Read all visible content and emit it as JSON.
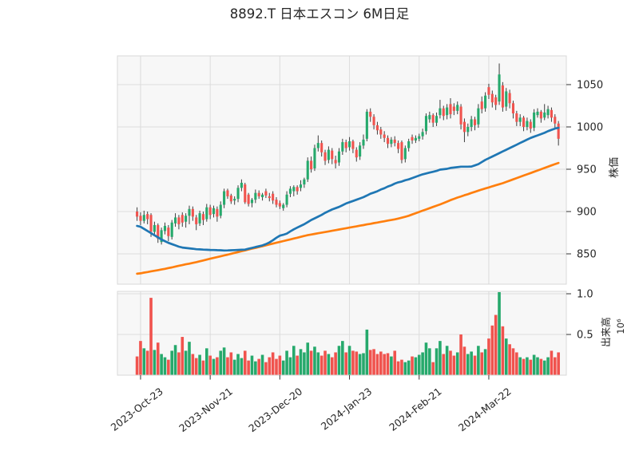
{
  "title": "8892.T 日本エスコン 6M日足",
  "price_axis": {
    "label": "株価",
    "tick_values": [
      1050,
      1000,
      950,
      900,
      850
    ]
  },
  "volume_axis": {
    "label": "出来高",
    "scale_label": "10⁶",
    "tick_values": [
      1.0,
      0.5
    ],
    "tick_labels": [
      "1.0",
      "0.5"
    ]
  },
  "x_axis": {
    "tick_labels": [
      "2023-Oct-23",
      "2023-Nov-21",
      "2023-Dec-20",
      "2024-Jan-23",
      "2024-Feb-21",
      "2024-Mar-22"
    ],
    "tick_indices": [
      1,
      21,
      41,
      61,
      81,
      101
    ]
  },
  "style": {
    "up_color": "#26a96c",
    "down_color": "#f0534e",
    "wick_color": "#3d3d3d",
    "ma_short_color": "#1f77b4",
    "ma_long_color": "#ff7f0e",
    "plot_bg": "#f7f7f7",
    "grid_color": "#dcdcdc",
    "border_color": "#d8d8d8",
    "text_color": "#262626",
    "tick_mark_color": "#333333"
  },
  "chart_data": {
    "type": "candlestick+volume",
    "symbol": "8892.T",
    "name": "日本エスコン",
    "timeframe": "6M日足",
    "price_range": [
      850,
      1050
    ],
    "volume_unit": 1000000,
    "legend": [
      "ma_short (blue)",
      "ma_long (orange)"
    ],
    "dates": [
      "2023-10-20",
      "2023-10-23",
      "2023-10-24",
      "2023-10-25",
      "2023-10-26",
      "2023-10-27",
      "2023-10-30",
      "2023-10-31",
      "2023-11-01",
      "2023-11-02",
      "2023-11-06",
      "2023-11-07",
      "2023-11-08",
      "2023-11-09",
      "2023-11-10",
      "2023-11-13",
      "2023-11-14",
      "2023-11-15",
      "2023-11-16",
      "2023-11-17",
      "2023-11-20",
      "2023-11-21",
      "2023-11-22",
      "2023-11-24",
      "2023-11-27",
      "2023-11-28",
      "2023-11-29",
      "2023-11-30",
      "2023-12-01",
      "2023-12-04",
      "2023-12-05",
      "2023-12-06",
      "2023-12-07",
      "2023-12-08",
      "2023-12-11",
      "2023-12-12",
      "2023-12-13",
      "2023-12-14",
      "2023-12-15",
      "2023-12-18",
      "2023-12-19",
      "2023-12-20",
      "2023-12-21",
      "2023-12-22",
      "2023-12-25",
      "2023-12-26",
      "2023-12-27",
      "2023-12-28",
      "2023-12-29",
      "2024-01-04",
      "2024-01-05",
      "2024-01-09",
      "2024-01-10",
      "2024-01-11",
      "2024-01-12",
      "2024-01-15",
      "2024-01-16",
      "2024-01-17",
      "2024-01-18",
      "2024-01-19",
      "2024-01-22",
      "2024-01-23",
      "2024-01-24",
      "2024-01-25",
      "2024-01-26",
      "2024-01-29",
      "2024-01-30",
      "2024-01-31",
      "2024-02-01",
      "2024-02-02",
      "2024-02-05",
      "2024-02-06",
      "2024-02-07",
      "2024-02-08",
      "2024-02-09",
      "2024-02-13",
      "2024-02-14",
      "2024-02-15",
      "2024-02-16",
      "2024-02-19",
      "2024-02-20",
      "2024-02-21",
      "2024-02-22",
      "2024-02-26",
      "2024-02-27",
      "2024-02-28",
      "2024-02-29",
      "2024-03-01",
      "2024-03-04",
      "2024-03-05",
      "2024-03-06",
      "2024-03-07",
      "2024-03-08",
      "2024-03-11",
      "2024-03-12",
      "2024-03-13",
      "2024-03-14",
      "2024-03-15",
      "2024-03-18",
      "2024-03-19",
      "2024-03-21",
      "2024-03-22",
      "2024-03-25",
      "2024-03-26",
      "2024-03-27",
      "2024-03-28",
      "2024-03-29",
      "2024-04-01",
      "2024-04-02",
      "2024-04-03",
      "2024-04-04",
      "2024-04-05",
      "2024-04-08",
      "2024-04-09",
      "2024-04-10",
      "2024-04-11",
      "2024-04-12",
      "2024-04-15",
      "2024-04-16",
      "2024-04-17",
      "2024-04-18",
      "2024-04-19"
    ],
    "open": [
      900,
      895,
      889,
      897,
      896,
      876,
      884,
      864,
      877,
      881,
      870,
      886,
      893,
      896,
      888,
      895,
      903,
      893,
      886,
      897,
      891,
      905,
      897,
      903,
      895,
      908,
      925,
      919,
      913,
      915,
      928,
      932,
      920,
      910,
      914,
      922,
      917,
      924,
      918,
      921,
      914,
      910,
      904,
      908,
      921,
      924,
      929,
      928,
      932,
      938,
      960,
      951,
      975,
      981,
      970,
      961,
      972,
      961,
      958,
      971,
      982,
      976,
      983,
      973,
      965,
      978,
      986,
      1018,
      1012,
      1002,
      997,
      991,
      987,
      980,
      985,
      981,
      982,
      962,
      975,
      988,
      984,
      986,
      989,
      995,
      1009,
      1014,
      1005,
      1014,
      1022,
      1014,
      1027,
      1024,
      1019,
      1024,
      1006,
      994,
      1000,
      1009,
      1003,
      1030,
      1022,
      1047,
      1039,
      1035,
      1030,
      1049,
      1024,
      1040,
      1028,
      1016,
      1006,
      1011,
      1000,
      1006,
      999,
      1014,
      1018,
      1011,
      1014,
      1020,
      1012,
      1004
    ],
    "high": [
      905,
      899,
      901,
      900,
      898,
      888,
      886,
      881,
      887,
      884,
      890,
      898,
      896,
      899,
      898,
      907,
      906,
      896,
      901,
      900,
      909,
      908,
      907,
      906,
      912,
      927,
      927,
      921,
      918,
      931,
      938,
      934,
      922,
      916,
      926,
      925,
      922,
      927,
      922,
      924,
      917,
      913,
      910,
      924,
      930,
      931,
      931,
      937,
      940,
      964,
      965,
      979,
      990,
      984,
      973,
      977,
      975,
      966,
      975,
      986,
      985,
      988,
      985,
      976,
      982,
      991,
      1021,
      1022,
      1015,
      1006,
      1000,
      995,
      990,
      988,
      989,
      984,
      984,
      978,
      986,
      991,
      990,
      992,
      998,
      1016,
      1018,
      1016,
      1017,
      1032,
      1025,
      1027,
      1034,
      1028,
      1030,
      1027,
      1010,
      1004,
      1013,
      1012,
      1027,
      1036,
      1041,
      1051,
      1043,
      1038,
      1075,
      1053,
      1046,
      1044,
      1031,
      1019,
      1015,
      1013,
      1011,
      1009,
      1021,
      1022,
      1020,
      1027,
      1025,
      1023,
      1015,
      1007
    ],
    "low": [
      889,
      884,
      886,
      885,
      870,
      872,
      863,
      861,
      873,
      865,
      867,
      882,
      879,
      882,
      881,
      885,
      889,
      878,
      883,
      884,
      888,
      891,
      893,
      888,
      892,
      904,
      915,
      909,
      908,
      911,
      924,
      909,
      906,
      905,
      910,
      915,
      913,
      916,
      912,
      909,
      905,
      903,
      901,
      905,
      917,
      918,
      920,
      924,
      928,
      935,
      946,
      948,
      971,
      965,
      955,
      957,
      956,
      951,
      954,
      967,
      970,
      972,
      969,
      959,
      961,
      974,
      983,
      1006,
      997,
      991,
      986,
      982,
      975,
      976,
      977,
      969,
      957,
      958,
      971,
      980,
      981,
      983,
      985,
      991,
      1005,
      1000,
      1001,
      1010,
      1008,
      1009,
      1010,
      1014,
      1015,
      997,
      982,
      989,
      995,
      996,
      999,
      1016,
      1018,
      1033,
      1023,
      1020,
      1026,
      1018,
      1019,
      1022,
      1010,
      1001,
      1001,
      995,
      996,
      993,
      995,
      1011,
      1005,
      1008,
      1010,
      1006,
      999,
      978
    ],
    "close": [
      894,
      889,
      896,
      891,
      876,
      884,
      868,
      878,
      883,
      871,
      887,
      893,
      885,
      887,
      895,
      903,
      894,
      885,
      898,
      890,
      905,
      896,
      904,
      894,
      908,
      924,
      918,
      912,
      915,
      928,
      934,
      911,
      909,
      914,
      922,
      918,
      920,
      919,
      916,
      913,
      908,
      906,
      908,
      920,
      927,
      929,
      924,
      932,
      938,
      960,
      950,
      975,
      981,
      970,
      960,
      973,
      962,
      957,
      971,
      982,
      975,
      983,
      974,
      964,
      978,
      985,
      1018,
      1012,
      1002,
      996,
      991,
      987,
      980,
      985,
      981,
      974,
      961,
      975,
      983,
      984,
      987,
      989,
      994,
      1013,
      1014,
      1005,
      1013,
      1022,
      1013,
      1023,
      1015,
      1019,
      1026,
      1003,
      994,
      1000,
      1009,
      1002,
      1022,
      1021,
      1037,
      1038,
      1029,
      1026,
      1062,
      1023,
      1042,
      1028,
      1016,
      1006,
      1011,
      1000,
      1007,
      998,
      1017,
      1018,
      1010,
      1017,
      1021,
      1011,
      1004,
      986
    ],
    "volume": [
      0.23,
      0.42,
      0.33,
      0.3,
      0.95,
      0.31,
      0.4,
      0.26,
      0.22,
      0.19,
      0.3,
      0.37,
      0.28,
      0.47,
      0.3,
      0.41,
      0.26,
      0.21,
      0.25,
      0.18,
      0.33,
      0.24,
      0.2,
      0.22,
      0.3,
      0.34,
      0.22,
      0.28,
      0.19,
      0.26,
      0.21,
      0.3,
      0.18,
      0.24,
      0.17,
      0.2,
      0.25,
      0.16,
      0.22,
      0.28,
      0.2,
      0.24,
      0.18,
      0.3,
      0.22,
      0.36,
      0.24,
      0.32,
      0.28,
      0.4,
      0.3,
      0.35,
      0.28,
      0.24,
      0.3,
      0.26,
      0.22,
      0.28,
      0.36,
      0.42,
      0.28,
      0.36,
      0.3,
      0.29,
      0.26,
      0.27,
      0.56,
      0.31,
      0.32,
      0.26,
      0.29,
      0.26,
      0.27,
      0.23,
      0.3,
      0.17,
      0.19,
      0.16,
      0.18,
      0.23,
      0.22,
      0.25,
      0.28,
      0.4,
      0.33,
      0.16,
      0.33,
      0.42,
      0.26,
      0.36,
      0.3,
      0.24,
      0.28,
      0.5,
      0.35,
      0.26,
      0.29,
      0.24,
      0.36,
      0.28,
      0.32,
      0.45,
      0.61,
      0.74,
      1.02,
      0.6,
      0.45,
      0.38,
      0.33,
      0.28,
      0.22,
      0.2,
      0.22,
      0.19,
      0.25,
      0.22,
      0.2,
      0.18,
      0.22,
      0.3,
      0.22,
      0.28
    ],
    "ma_short": [
      883,
      882,
      879.5,
      877,
      874.5,
      872,
      869.5,
      867,
      865,
      863,
      861.5,
      860,
      858.5,
      857.5,
      857,
      856.5,
      856,
      855.5,
      855.3,
      855,
      854.8,
      854.6,
      854.5,
      854.3,
      854.2,
      854,
      854.1,
      854.2,
      854.4,
      854.6,
      854.8,
      855,
      856,
      857,
      858,
      859,
      860,
      861.5,
      863.5,
      866,
      869,
      871.5,
      872.5,
      874,
      876.5,
      879,
      881,
      883,
      885,
      887.5,
      890,
      892,
      894,
      896,
      898.5,
      900.5,
      902.5,
      904,
      905.5,
      907.5,
      909.5,
      911,
      912.5,
      914,
      915.5,
      917,
      919,
      921,
      922.5,
      924,
      926,
      927.5,
      929.5,
      931,
      933,
      934.5,
      935.5,
      937,
      938,
      939.5,
      941,
      942.5,
      944,
      945,
      946,
      947,
      948,
      949.5,
      950,
      950.5,
      951.5,
      952,
      952.5,
      953,
      953,
      953,
      953.2,
      954.5,
      956,
      958.5,
      961,
      963,
      965,
      967,
      969,
      971,
      973,
      975,
      977,
      979,
      981,
      983,
      985,
      987,
      988.5,
      990,
      991.5,
      993,
      995,
      996.5,
      998,
      999
    ],
    "ma_long": [
      826.5,
      827,
      827.8,
      828.5,
      829.3,
      830,
      830.8,
      831.5,
      832.3,
      833.2,
      834,
      835,
      835.9,
      836.7,
      837.6,
      838.4,
      839.3,
      840.2,
      841.2,
      842.2,
      843.2,
      844.2,
      845.2,
      846.1,
      847.1,
      848.1,
      849.1,
      850.1,
      851.1,
      852.1,
      853.1,
      854.1,
      855.1,
      856.1,
      857.1,
      858.1,
      859.1,
      860.1,
      861.1,
      862.1,
      863.1,
      864.1,
      865.1,
      866.1,
      867.1,
      868.1,
      869.1,
      870.1,
      871.1,
      872.1,
      872.8,
      873.6,
      874.3,
      875.1,
      875.8,
      876.5,
      877.3,
      878,
      878.8,
      879.5,
      880.3,
      881,
      881.8,
      882.5,
      883.3,
      884,
      884.8,
      885.5,
      886.3,
      887,
      887.8,
      888.5,
      889.3,
      890,
      890.8,
      891.7,
      892.7,
      893.8,
      895,
      896.5,
      898,
      899.5,
      901,
      902.5,
      904,
      905.5,
      907,
      908.4,
      910,
      911.7,
      913.5,
      915,
      916.5,
      917.8,
      919.2,
      920.5,
      922,
      923.3,
      924.7,
      926,
      927.3,
      928.5,
      929.8,
      931,
      932.3,
      933.5,
      935,
      936.5,
      938,
      939.5,
      941,
      942.5,
      944,
      945.5,
      947,
      948.5,
      950,
      951.5,
      953,
      954.5,
      956,
      957.5
    ]
  }
}
